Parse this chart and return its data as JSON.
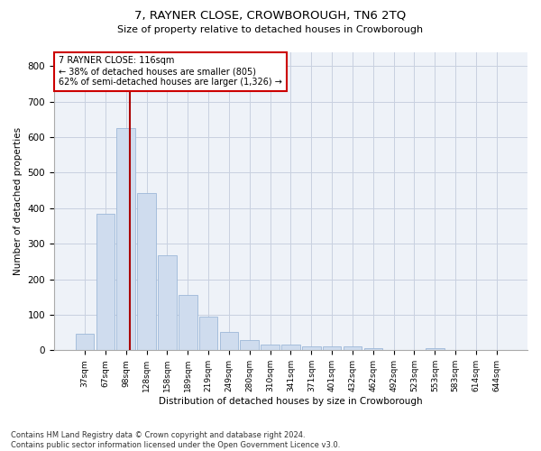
{
  "title": "7, RAYNER CLOSE, CROWBOROUGH, TN6 2TQ",
  "subtitle": "Size of property relative to detached houses in Crowborough",
  "xlabel": "Distribution of detached houses by size in Crowborough",
  "ylabel": "Number of detached properties",
  "categories": [
    "37sqm",
    "67sqm",
    "98sqm",
    "128sqm",
    "158sqm",
    "189sqm",
    "219sqm",
    "249sqm",
    "280sqm",
    "310sqm",
    "341sqm",
    "371sqm",
    "401sqm",
    "432sqm",
    "462sqm",
    "492sqm",
    "523sqm",
    "553sqm",
    "583sqm",
    "614sqm",
    "644sqm"
  ],
  "values": [
    46,
    383,
    625,
    443,
    268,
    155,
    96,
    52,
    28,
    15,
    15,
    10,
    10,
    10,
    7,
    0,
    0,
    7,
    0,
    0,
    0
  ],
  "bar_color": "#cfdcee",
  "bar_edgecolor": "#9db8d8",
  "grid_color": "#c8d0e0",
  "vline_color": "#aa0000",
  "annotation_text": "7 RAYNER CLOSE: 116sqm\n← 38% of detached houses are smaller (805)\n62% of semi-detached houses are larger (1,326) →",
  "annotation_box_color": "#ffffff",
  "annotation_box_edgecolor": "#cc0000",
  "ylim": [
    0,
    840
  ],
  "yticks": [
    0,
    100,
    200,
    300,
    400,
    500,
    600,
    700,
    800
  ],
  "footer": "Contains HM Land Registry data © Crown copyright and database right 2024.\nContains public sector information licensed under the Open Government Licence v3.0.",
  "bg_color": "#eef2f8"
}
